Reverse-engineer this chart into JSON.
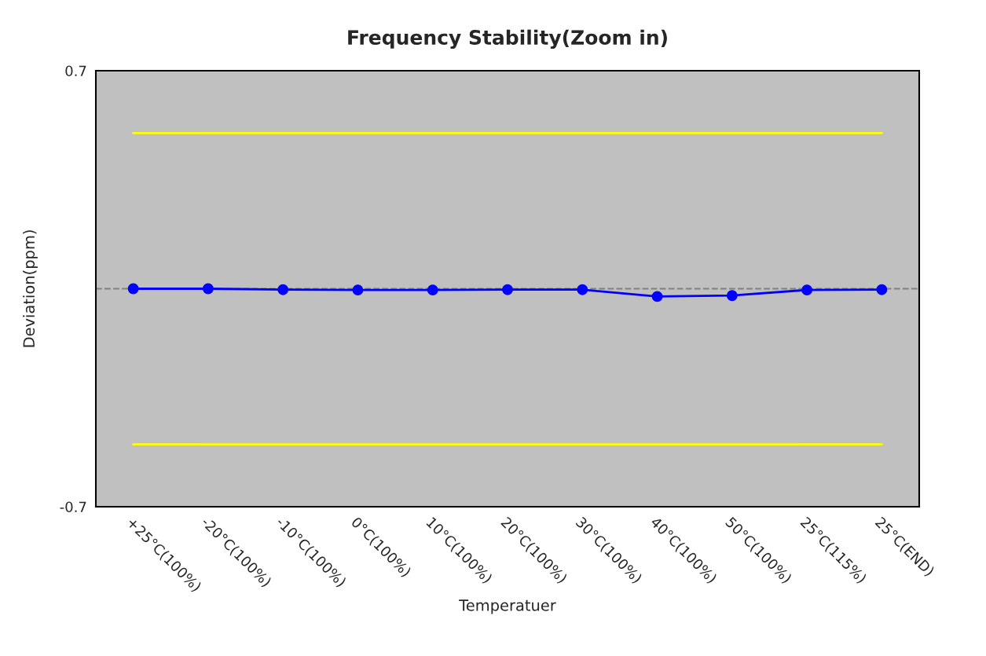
{
  "chart_data": {
    "type": "line",
    "title": "Frequency Stability(Zoom in)",
    "xlabel": "Temperatuer",
    "ylabel": "Deviation(ppm)",
    "categories": [
      "+25°C(100%)",
      "-20°C(100%)",
      "-10°C(100%)",
      "0°C(100%)",
      "10°C(100%)",
      "20°C(100%)",
      "30°C(100%)",
      "40°C(100%)",
      "50°C(100%)",
      "25°C(115%)",
      "25°C(END)"
    ],
    "series": [
      {
        "color": "#ffff00",
        "marker": "none",
        "values": [
          0.5,
          0.5,
          0.5,
          0.5,
          0.5,
          0.5,
          0.5,
          0.5,
          0.5,
          0.5,
          0.5
        ]
      },
      {
        "color": "#ffff00",
        "marker": "none",
        "values": [
          -0.5,
          -0.5,
          -0.5,
          -0.5,
          -0.5,
          -0.5,
          -0.5,
          -0.5,
          -0.5,
          -0.5,
          -0.5
        ]
      },
      {
        "color": "#0000ff",
        "marker": "circle",
        "values": [
          0.0,
          0.0,
          -0.003,
          -0.004,
          -0.004,
          -0.003,
          -0.003,
          -0.025,
          -0.022,
          -0.004,
          -0.003
        ]
      }
    ],
    "ref_lines": [
      {
        "axis": "y",
        "value": 0,
        "color": "#808080",
        "line_style": "dashed"
      }
    ],
    "ylim": [
      -0.7,
      0.7
    ],
    "yticks": [
      -0.7,
      0.7
    ],
    "grid": false,
    "legend": false
  }
}
